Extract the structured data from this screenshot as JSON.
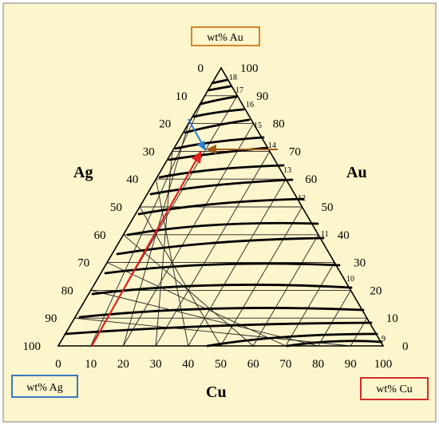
{
  "diagram": {
    "corner_labels": {
      "left": "Ag",
      "right": "Au",
      "bottom": "Cu"
    },
    "axis_boxes": {
      "top": {
        "text": "wt% Au",
        "color": "#d9822b"
      },
      "bottom_left": {
        "text": "wt% Ag",
        "color": "#3a78c2"
      },
      "bottom_right": {
        "text": "wt% Cu",
        "color": "#d42a2a"
      }
    },
    "ticks": {
      "bottom": [
        "0",
        "10",
        "20",
        "30",
        "40",
        "50",
        "60",
        "70",
        "80",
        "90",
        "100"
      ],
      "left": [
        "0",
        "10",
        "20",
        "30",
        "40",
        "50",
        "60",
        "70",
        "80",
        "90",
        "100"
      ],
      "right": [
        "100",
        "90",
        "80",
        "70",
        "60",
        "50",
        "40",
        "30",
        "20",
        "10",
        "0"
      ]
    },
    "karat_labels": [
      "18",
      "17",
      "16",
      "15",
      "14",
      "13",
      "12",
      "11",
      "10",
      "9"
    ],
    "colors": {
      "background": "#fdf5cc",
      "grid": "#222222",
      "contour": "#000000",
      "arrow_red": "#e0231f",
      "arrow_blue": "#2f7fd0",
      "arrow_brown": "#a05a14"
    }
  }
}
